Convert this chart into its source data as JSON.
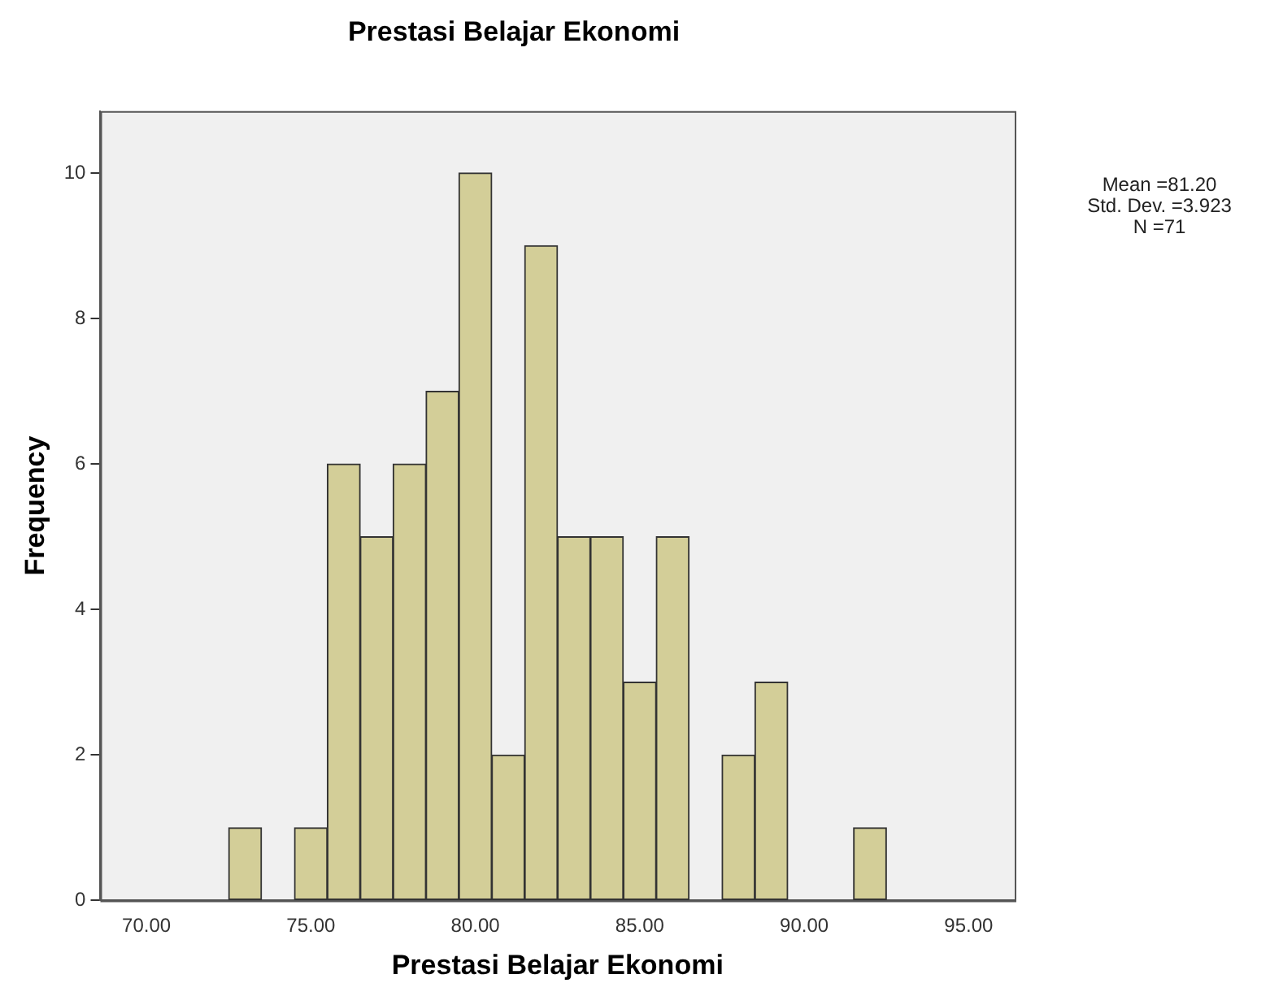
{
  "chart_data": {
    "type": "histogram",
    "title": "Prestasi Belajar Ekonomi",
    "xlabel": "Prestasi Belajar Ekonomi",
    "ylabel": "Frequency",
    "bins": [
      72.5,
      73.5,
      74.5,
      75.5,
      76.5,
      77.5,
      78.5,
      79.5,
      80.5,
      81.5,
      82.5,
      83.5,
      84.5,
      85.5,
      86.5,
      87.5,
      88.5,
      89.5,
      90.5,
      91.5,
      92.5
    ],
    "values": [
      1,
      0,
      1,
      6,
      5,
      6,
      7,
      10,
      2,
      9,
      5,
      5,
      3,
      5,
      0,
      2,
      3,
      0,
      0,
      1
    ],
    "color": "#d3ce98",
    "xlim": [
      68.6,
      96.4
    ],
    "xticks": [
      {
        "value": 70,
        "label": "70.00"
      },
      {
        "value": 75,
        "label": "75.00"
      },
      {
        "value": 80,
        "label": "80.00"
      },
      {
        "value": 85,
        "label": "85.00"
      },
      {
        "value": 90,
        "label": "90.00"
      },
      {
        "value": 95,
        "label": "95.00"
      }
    ],
    "ylim": [
      0,
      10.85
    ],
    "yticks": [
      0,
      2,
      4,
      6,
      8,
      10
    ],
    "grid": false,
    "legend": false,
    "annotations": [
      "Mean =81.20\nStd. Dev. =3.923\nN =71"
    ]
  }
}
